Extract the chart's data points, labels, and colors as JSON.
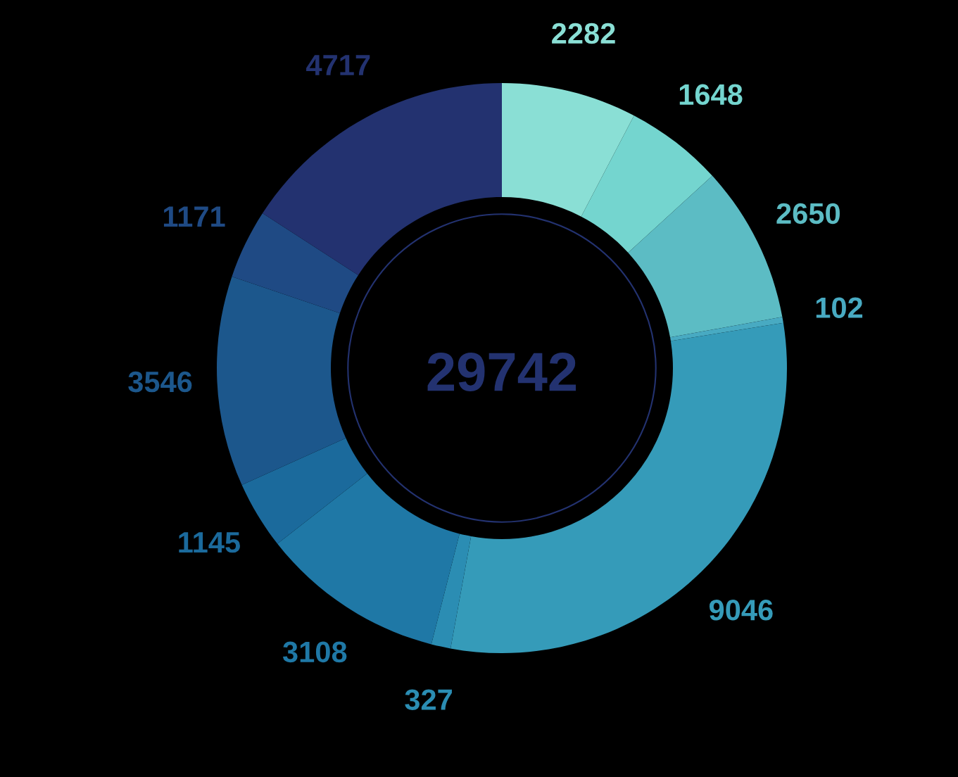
{
  "chart_data": {
    "type": "donut",
    "categories": [
      null,
      null,
      null,
      null,
      null,
      null,
      null,
      null,
      null,
      null,
      null
    ],
    "values": [
      2282,
      1648,
      2650,
      102,
      9046,
      327,
      3108,
      1145,
      3546,
      1171,
      4717
    ],
    "colors": [
      "#8adfd5",
      "#74d5cf",
      "#5cbcc4",
      "#48aac2",
      "#359bb9",
      "#2b8db3",
      "#1f78a6",
      "#1b6a9c",
      "#1c578c",
      "#1f4a84",
      "#233270"
    ],
    "data_labels": true,
    "annotations": [
      "29742"
    ]
  }
}
